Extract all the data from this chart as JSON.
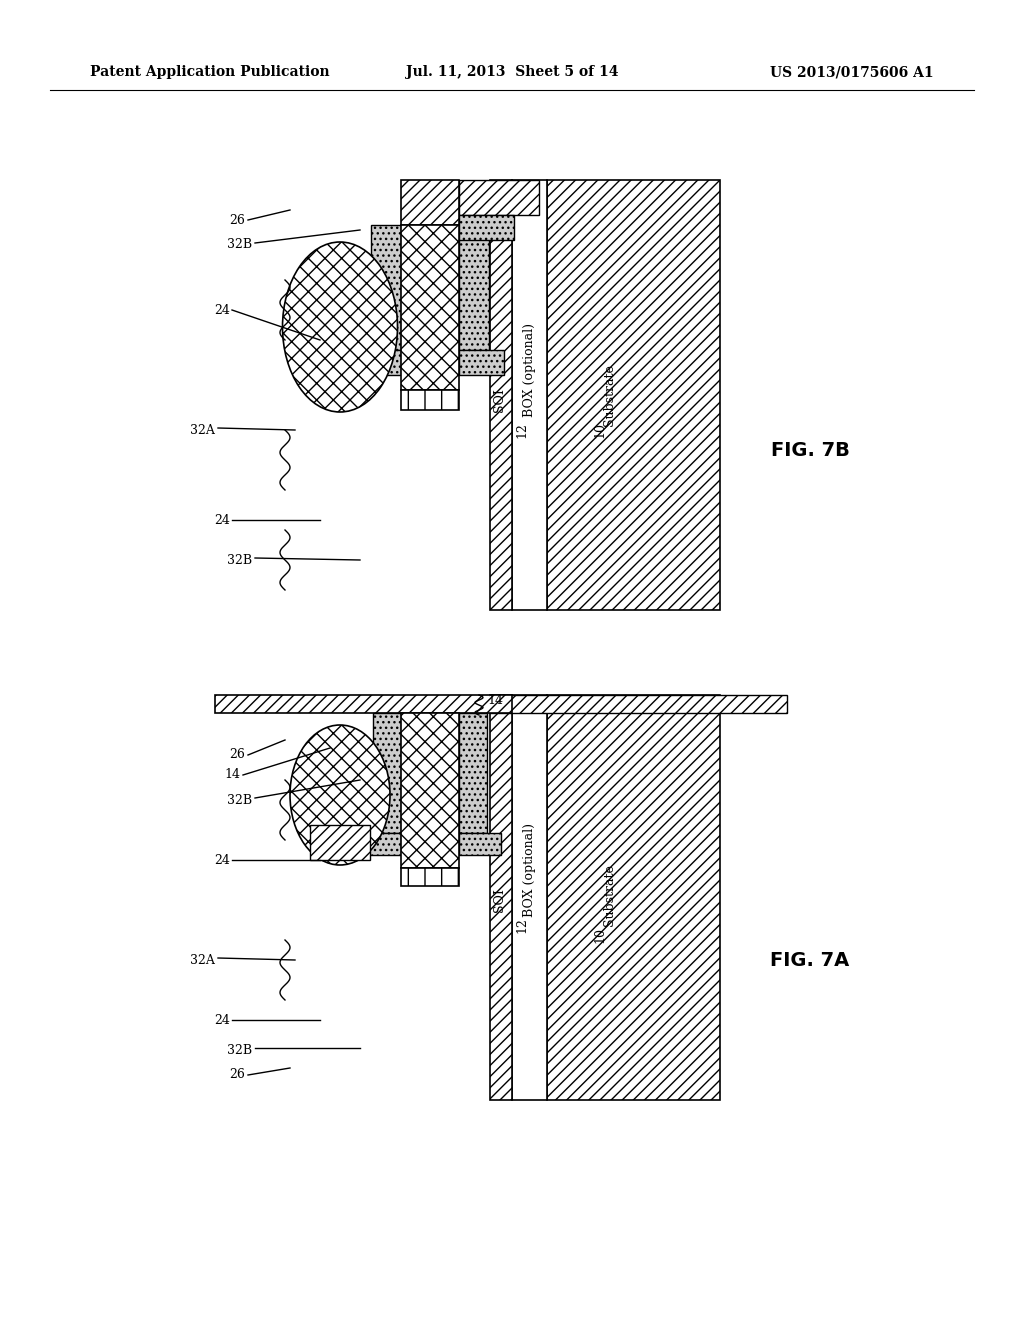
{
  "title_left": "Patent Application Publication",
  "title_mid": "Jul. 11, 2013  Sheet 5 of 14",
  "title_right": "US 2013/0175606 A1",
  "fig7a_label": "FIG. 7A",
  "fig7b_label": "FIG. 7B",
  "bg_color": "#ffffff",
  "line_color": "#000000",
  "hatch_color": "#000000",
  "gray_fill": "#d0d0d0",
  "light_gray": "#e8e8e8"
}
